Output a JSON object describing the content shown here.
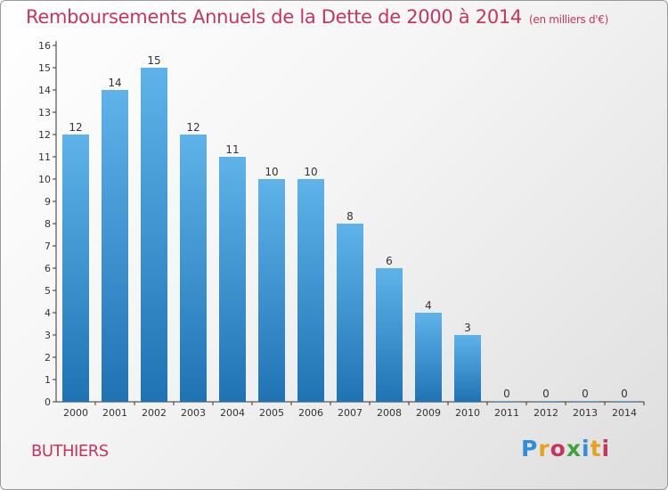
{
  "chart_data": {
    "type": "bar",
    "title": "Remboursements Annuels de la Dette de 2000 à 2014",
    "subtitle": "(en milliers d'€)",
    "categories": [
      "2000",
      "2001",
      "2002",
      "2003",
      "2004",
      "2005",
      "2006",
      "2007",
      "2008",
      "2009",
      "2010",
      "2011",
      "2012",
      "2013",
      "2014"
    ],
    "values": [
      12,
      14,
      15,
      12,
      11,
      10,
      10,
      8,
      6,
      4,
      3,
      0,
      0,
      0,
      0
    ],
    "value_labels": [
      "12",
      "14",
      "15",
      "12",
      "11",
      "10",
      "10",
      "8",
      "6",
      "4",
      "3",
      "0",
      "0",
      "0",
      "0"
    ],
    "ylim": [
      0,
      16
    ],
    "yticks": [
      "0",
      "1",
      "2",
      "3",
      "4",
      "5",
      "6",
      "7",
      "8",
      "9",
      "10",
      "11",
      "12",
      "13",
      "14",
      "15",
      "16"
    ],
    "xlabel": "",
    "ylabel": "",
    "grid": false,
    "bar_color_top": "#5fb3ea",
    "bar_color_bottom": "#1f73b3"
  },
  "footer": {
    "commune": "BUTHIERS",
    "logo_letters": [
      "P",
      "r",
      "o",
      "x",
      "i",
      "t",
      "i"
    ],
    "logo_colors": [
      "#2f8ddc",
      "#e7a21b",
      "#c5365e",
      "#3da33a",
      "#2f8ddc",
      "#e7a21b",
      "#c5365e"
    ]
  },
  "colors": {
    "title": "#c5365e",
    "axis": "#333333",
    "tick_text": "#333333"
  }
}
